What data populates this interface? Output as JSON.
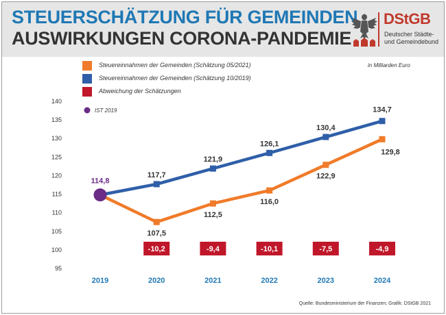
{
  "header": {
    "title_line1": "STEUERSCHÄTZUNG FÜR GEMEINDEN",
    "title_line2": "AUSWIRKUNGEN CORONA-PANDEMIE",
    "logo_title": "DStGB",
    "logo_sub1": "Deutscher Städte-",
    "logo_sub2": "und Gemeindebund"
  },
  "unit_note": "in Milliarden Euro",
  "source": "Quelle: Bundesministerium der Finanzen; Grafik: DStGB 2021",
  "colors": {
    "blue": "#2f5fa8",
    "orange": "#f07b2a",
    "red": "#c0172a",
    "purple": "#6a2c86",
    "title_blue": "#1f78b4"
  },
  "chart_data": {
    "type": "line",
    "x": [
      "2019",
      "2020",
      "2021",
      "2022",
      "2023",
      "2024"
    ],
    "ylim": [
      95,
      140
    ],
    "yticks": [
      "95",
      "100",
      "105",
      "110",
      "115",
      "120",
      "125",
      "130",
      "135",
      "140"
    ],
    "series": [
      {
        "name": "Steuereinnahmen der Gemeinden (Schätzung 05/2021)",
        "color": "#f07b2a",
        "values": [
          114.8,
          107.5,
          112.5,
          116.0,
          122.9,
          129.8
        ],
        "labels": [
          "",
          "107,5",
          "112,5",
          "116,0",
          "122,9",
          "129,8"
        ]
      },
      {
        "name": "Steuereinnahmen der Gemeinden (Schätzung 10/2019)",
        "color": "#2f5fa8",
        "values": [
          114.8,
          117.7,
          121.9,
          126.1,
          130.4,
          134.7
        ],
        "labels": [
          "",
          "117,7",
          "121,9",
          "126,1",
          "130,4",
          "134,7"
        ]
      }
    ],
    "deviation": {
      "name": "Abweichung der Schätzungen",
      "color": "#c0172a",
      "values": [
        -10.2,
        -9.4,
        -10.1,
        -7.5,
        -4.9
      ],
      "labels": [
        "-10,2",
        "-9,4",
        "-10,1",
        "-7,5",
        "-4,9"
      ],
      "x": [
        "2020",
        "2021",
        "2022",
        "2023",
        "2024"
      ]
    },
    "ist": {
      "name": "IST 2019",
      "x": "2019",
      "value": 114.8,
      "label": "114,8",
      "color": "#6a2c86"
    }
  }
}
